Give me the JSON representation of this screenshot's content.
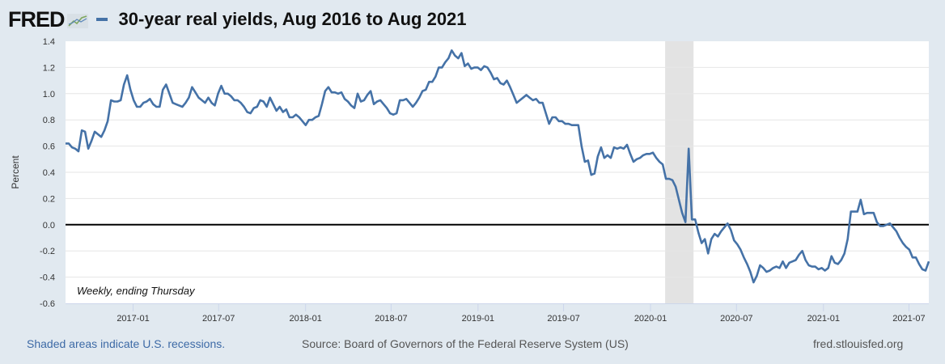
{
  "header": {
    "logo": "FRED",
    "title": "30-year real yields, Aug 2016 to Aug 2021"
  },
  "footer": {
    "recession_note": "Shaded areas indicate U.S. recessions.",
    "source": "Source: Board of Governors of the Federal Reserve System (US)",
    "site": "fred.stlouisfed.org"
  },
  "colors": {
    "line": "#4572a7",
    "background": "#e1e9f0",
    "recession": "#e3e3e3"
  },
  "chart_data": {
    "type": "line",
    "title": "30-year real yields, Aug 2016 to Aug 2021",
    "xlabel": "",
    "ylabel": "Percent",
    "annotation": "Weekly, ending Thursday",
    "ylim": [
      -0.6,
      1.4
    ],
    "yticks": [
      "1.4",
      "1.2",
      "1.0",
      "0.8",
      "0.6",
      "0.4",
      "0.2",
      "0.0",
      "-0.2",
      "-0.4",
      "-0.6"
    ],
    "ytick_values": [
      1.4,
      1.2,
      1.0,
      0.8,
      0.6,
      0.4,
      0.2,
      0.0,
      -0.2,
      -0.4,
      -0.6
    ],
    "xlim": [
      "2016-08-11",
      "2021-08-12"
    ],
    "xticks": [
      {
        "label": "2017-01",
        "date": "2017-01-01"
      },
      {
        "label": "2017-07",
        "date": "2017-07-01"
      },
      {
        "label": "2018-01",
        "date": "2018-01-01"
      },
      {
        "label": "2018-07",
        "date": "2018-07-01"
      },
      {
        "label": "2019-01",
        "date": "2019-01-01"
      },
      {
        "label": "2019-07",
        "date": "2019-07-01"
      },
      {
        "label": "2020-01",
        "date": "2020-01-01"
      },
      {
        "label": "2020-07",
        "date": "2020-07-01"
      },
      {
        "label": "2021-01",
        "date": "2021-01-01"
      },
      {
        "label": "2021-07",
        "date": "2021-07-01"
      }
    ],
    "grid": true,
    "recessions": [
      {
        "start": "2020-02-01",
        "end": "2020-04-01"
      }
    ],
    "series": [
      {
        "name": "30-year real yields",
        "frequency": "weekly",
        "start": "2016-08-11",
        "end": "2021-08-12",
        "values": [
          0.62,
          0.62,
          0.59,
          0.58,
          0.56,
          0.72,
          0.71,
          0.58,
          0.64,
          0.71,
          0.69,
          0.67,
          0.72,
          0.79,
          0.95,
          0.94,
          0.94,
          0.95,
          1.07,
          1.14,
          1.03,
          0.95,
          0.9,
          0.9,
          0.93,
          0.94,
          0.96,
          0.92,
          0.9,
          0.9,
          1.03,
          1.07,
          1.0,
          0.93,
          0.92,
          0.91,
          0.9,
          0.93,
          0.97,
          1.05,
          1.01,
          0.97,
          0.95,
          0.93,
          0.97,
          0.93,
          0.91,
          1.0,
          1.06,
          1.0,
          1.0,
          0.98,
          0.95,
          0.95,
          0.93,
          0.9,
          0.86,
          0.85,
          0.89,
          0.9,
          0.95,
          0.94,
          0.9,
          0.97,
          0.92,
          0.87,
          0.9,
          0.86,
          0.88,
          0.82,
          0.82,
          0.84,
          0.82,
          0.79,
          0.76,
          0.8,
          0.8,
          0.82,
          0.83,
          0.92,
          1.02,
          1.05,
          1.01,
          1.01,
          1.0,
          1.01,
          0.96,
          0.94,
          0.91,
          0.89,
          1.0,
          0.94,
          0.95,
          0.99,
          1.02,
          0.92,
          0.94,
          0.95,
          0.92,
          0.89,
          0.85,
          0.84,
          0.85,
          0.95,
          0.95,
          0.96,
          0.93,
          0.9,
          0.93,
          0.97,
          1.02,
          1.03,
          1.09,
          1.09,
          1.13,
          1.2,
          1.2,
          1.24,
          1.27,
          1.33,
          1.29,
          1.27,
          1.31,
          1.21,
          1.23,
          1.19,
          1.2,
          1.2,
          1.18,
          1.21,
          1.2,
          1.16,
          1.11,
          1.12,
          1.08,
          1.07,
          1.1,
          1.05,
          0.99,
          0.93,
          0.95,
          0.97,
          0.99,
          0.97,
          0.95,
          0.96,
          0.93,
          0.93,
          0.85,
          0.77,
          0.82,
          0.82,
          0.79,
          0.79,
          0.77,
          0.77,
          0.76,
          0.76,
          0.76,
          0.6,
          0.48,
          0.49,
          0.38,
          0.39,
          0.52,
          0.59,
          0.51,
          0.53,
          0.51,
          0.59,
          0.58,
          0.59,
          0.58,
          0.61,
          0.54,
          0.48,
          0.5,
          0.51,
          0.53,
          0.54,
          0.54,
          0.55,
          0.51,
          0.48,
          0.46,
          0.35,
          0.35,
          0.34,
          0.29,
          0.19,
          0.09,
          0.02,
          0.58,
          0.04,
          0.04,
          -0.06,
          -0.14,
          -0.11,
          -0.22,
          -0.11,
          -0.07,
          -0.09,
          -0.05,
          -0.02,
          0.01,
          -0.04,
          -0.12,
          -0.15,
          -0.19,
          -0.25,
          -0.3,
          -0.36,
          -0.44,
          -0.39,
          -0.31,
          -0.33,
          -0.36,
          -0.35,
          -0.33,
          -0.32,
          -0.33,
          -0.28,
          -0.33,
          -0.29,
          -0.28,
          -0.27,
          -0.23,
          -0.2,
          -0.27,
          -0.31,
          -0.32,
          -0.32,
          -0.34,
          -0.33,
          -0.35,
          -0.33,
          -0.24,
          -0.29,
          -0.3,
          -0.27,
          -0.22,
          -0.11,
          0.1,
          0.1,
          0.1,
          0.19,
          0.08,
          0.09,
          0.09,
          0.09,
          0.02,
          -0.01,
          -0.01,
          0.0,
          0.01,
          -0.02,
          -0.05,
          -0.1,
          -0.14,
          -0.17,
          -0.19,
          -0.25,
          -0.25,
          -0.3,
          -0.34,
          -0.35,
          -0.28
        ]
      }
    ]
  }
}
